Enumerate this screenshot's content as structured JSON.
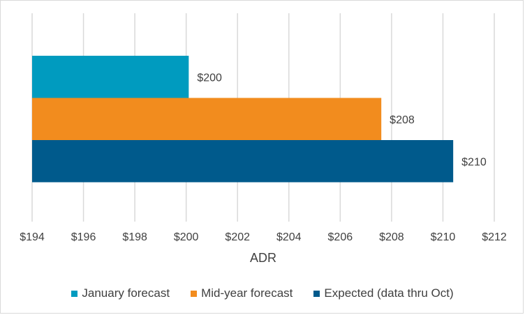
{
  "chart_data": {
    "type": "bar",
    "orientation": "horizontal",
    "title": "",
    "xlabel": "ADR",
    "ylabel": "",
    "xlim": [
      194,
      212
    ],
    "x_tick_step": 2,
    "x_ticks": [
      "$194",
      "$196",
      "$198",
      "$200",
      "$202",
      "$204",
      "$206",
      "$208",
      "$210",
      "$212"
    ],
    "grid": "vertical",
    "legend_position": "bottom",
    "series": [
      {
        "name": "January forecast",
        "value": 200.1,
        "label": "$200",
        "color": "#009bbf"
      },
      {
        "name": "Mid-year forecast",
        "value": 207.6,
        "label": "$208",
        "color": "#f28c1e"
      },
      {
        "name": "Expected (data thru Oct)",
        "value": 210.4,
        "label": "$210",
        "color": "#005a8c"
      }
    ]
  }
}
